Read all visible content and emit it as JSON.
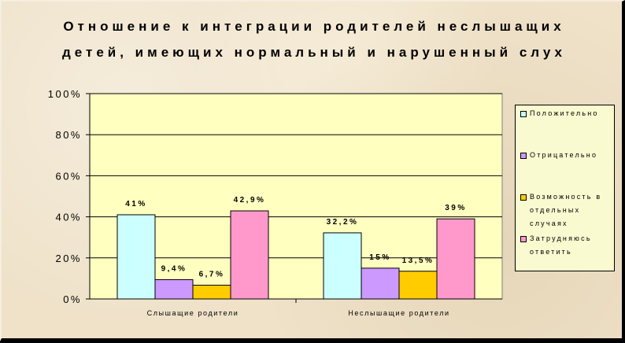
{
  "title_lines": [
    "Отношение к интеграции родителей неслышащих",
    "детей, имеющих нормальный и нарушенный слух"
  ],
  "chart_data": {
    "type": "bar",
    "title": "Отношение к интеграции родителей неслышащих детей, имеющих нормальный и нарушенный слух",
    "categories": [
      "Слышащие родители",
      "Неслышащие родители"
    ],
    "series": [
      {
        "name": "Положительно",
        "values": [
          41,
          32.2
        ],
        "labels": [
          "41%",
          "32,2%"
        ],
        "color": "#ccffff"
      },
      {
        "name": "Отрицательно",
        "values": [
          9.4,
          15
        ],
        "labels": [
          "9,4%",
          "15%"
        ],
        "color": "#cc99ff"
      },
      {
        "name": "Возможность в отдельных случаях",
        "values": [
          6.7,
          13.5
        ],
        "labels": [
          "6,7%",
          "13,5%"
        ],
        "color": "#ffcc00"
      },
      {
        "name": "Затрудняюсь ответить",
        "values": [
          42.9,
          39
        ],
        "labels": [
          "42,9%",
          "39%"
        ],
        "color": "#ff99cc"
      }
    ],
    "y_ticks": [
      "0%",
      "20%",
      "40%",
      "60%",
      "80%",
      "100%"
    ],
    "ylim": [
      0,
      100
    ],
    "grid": true,
    "legend_position": "right",
    "plot_background": "#ffffc0"
  }
}
